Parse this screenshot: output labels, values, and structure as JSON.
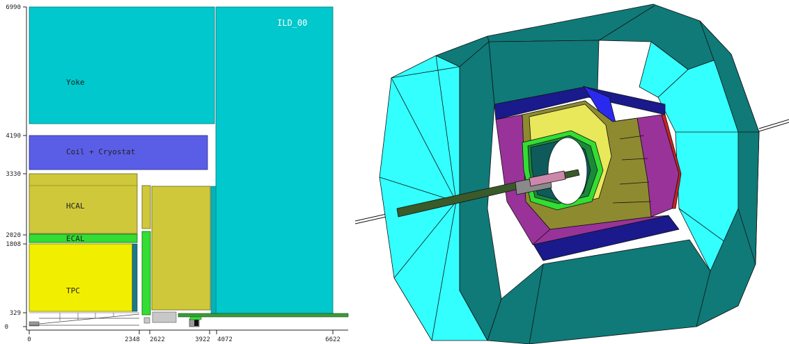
{
  "left_panel": {
    "detector_model": "ILD_00",
    "labels": {
      "yoke": "Yoke",
      "coil": "Coil + Cryostat",
      "hcal": "HCAL",
      "ecal": "ECAL",
      "tpc": "TPC"
    },
    "r_ticks": [
      "6990",
      "4190",
      "3330",
      "2020",
      "1808",
      "329",
      "0"
    ],
    "z_ticks": [
      "0",
      "2348",
      "2622",
      "3922",
      "4072",
      "6622"
    ]
  },
  "colors": {
    "yoke": "#00c8cc",
    "coil": "#5a5ee6",
    "hcal": "#cfc83a",
    "ecal": "#33dd33",
    "tpc": "#f2ee00",
    "beampipe": "#3a9a3a",
    "yoke_3d_dark": "#0f7a78",
    "yoke_3d_light": "#33ffff",
    "hcal_3d": "#8e8a30",
    "ecal_3d": "#993399",
    "coil_3d": "#1a1a8c"
  }
}
